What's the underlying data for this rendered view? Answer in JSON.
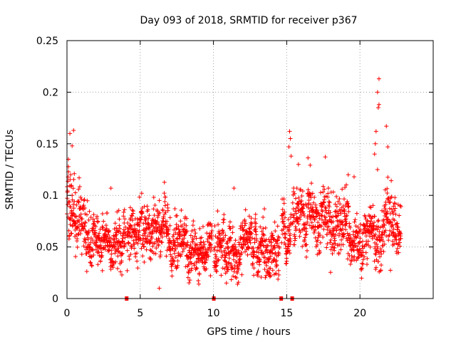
{
  "chart_data": {
    "type": "scatter",
    "title": "Day 093 of 2018, SRMTID for receiver p367",
    "xlabel": "GPS time / hours",
    "ylabel": "SRMTID / TECUs",
    "xlim": [
      0,
      25
    ],
    "ylim": [
      0,
      0.25
    ],
    "x_ticks": [
      0,
      5,
      10,
      15,
      20
    ],
    "x_tick_labels": [
      "0",
      "5",
      "10",
      "15",
      "20"
    ],
    "y_ticks": [
      0,
      0.05,
      0.1,
      0.15,
      0.2,
      0.25
    ],
    "y_tick_labels": [
      "0",
      "0.05",
      "0.1",
      "0.15",
      "0.2",
      "0.25"
    ],
    "grid": true,
    "color": "#ff0000",
    "marker": "plus",
    "gap_markers_x": [
      4.05,
      10.0,
      14.6,
      15.35
    ],
    "series": [
      {
        "name": "SRMTID",
        "segments": [
          {
            "x_start": 0.0,
            "x_end": 0.5,
            "mean": 0.095,
            "spread": 0.03
          },
          {
            "x_start": 0.5,
            "x_end": 1.5,
            "mean": 0.07,
            "spread": 0.025
          },
          {
            "x_start": 1.5,
            "x_end": 4.0,
            "mean": 0.055,
            "spread": 0.02
          },
          {
            "x_start": 4.1,
            "x_end": 7.0,
            "mean": 0.06,
            "spread": 0.02
          },
          {
            "x_start": 7.0,
            "x_end": 9.9,
            "mean": 0.05,
            "spread": 0.02
          },
          {
            "x_start": 10.05,
            "x_end": 14.5,
            "mean": 0.048,
            "spread": 0.02
          },
          {
            "x_start": 14.65,
            "x_end": 15.3,
            "mean": 0.07,
            "spread": 0.02
          },
          {
            "x_start": 15.4,
            "x_end": 19.3,
            "mean": 0.075,
            "spread": 0.025
          },
          {
            "x_start": 19.3,
            "x_end": 20.5,
            "mean": 0.06,
            "spread": 0.02
          },
          {
            "x_start": 20.5,
            "x_end": 22.8,
            "mean": 0.075,
            "spread": 0.025
          }
        ],
        "peaks": [
          {
            "x": 0.2,
            "y": 0.16
          },
          {
            "x": 0.45,
            "y": 0.163
          },
          {
            "x": 0.35,
            "y": 0.148
          },
          {
            "x": 0.1,
            "y": 0.135
          },
          {
            "x": 0.25,
            "y": 0.12
          },
          {
            "x": 3.0,
            "y": 0.107
          },
          {
            "x": 5.1,
            "y": 0.102
          },
          {
            "x": 6.3,
            "y": 0.01
          },
          {
            "x": 9.0,
            "y": 0.014
          },
          {
            "x": 11.4,
            "y": 0.107
          },
          {
            "x": 15.2,
            "y": 0.162
          },
          {
            "x": 15.25,
            "y": 0.155
          },
          {
            "x": 15.15,
            "y": 0.147
          },
          {
            "x": 15.3,
            "y": 0.138
          },
          {
            "x": 15.8,
            "y": 0.13
          },
          {
            "x": 19.2,
            "y": 0.12
          },
          {
            "x": 19.6,
            "y": 0.118
          },
          {
            "x": 21.3,
            "y": 0.213
          },
          {
            "x": 21.2,
            "y": 0.2
          },
          {
            "x": 21.3,
            "y": 0.188
          },
          {
            "x": 21.25,
            "y": 0.185
          },
          {
            "x": 21.1,
            "y": 0.162
          },
          {
            "x": 21.05,
            "y": 0.15
          },
          {
            "x": 21.8,
            "y": 0.167
          },
          {
            "x": 21.9,
            "y": 0.147
          },
          {
            "x": 21.0,
            "y": 0.14
          },
          {
            "x": 21.2,
            "y": 0.125
          }
        ]
      }
    ]
  }
}
